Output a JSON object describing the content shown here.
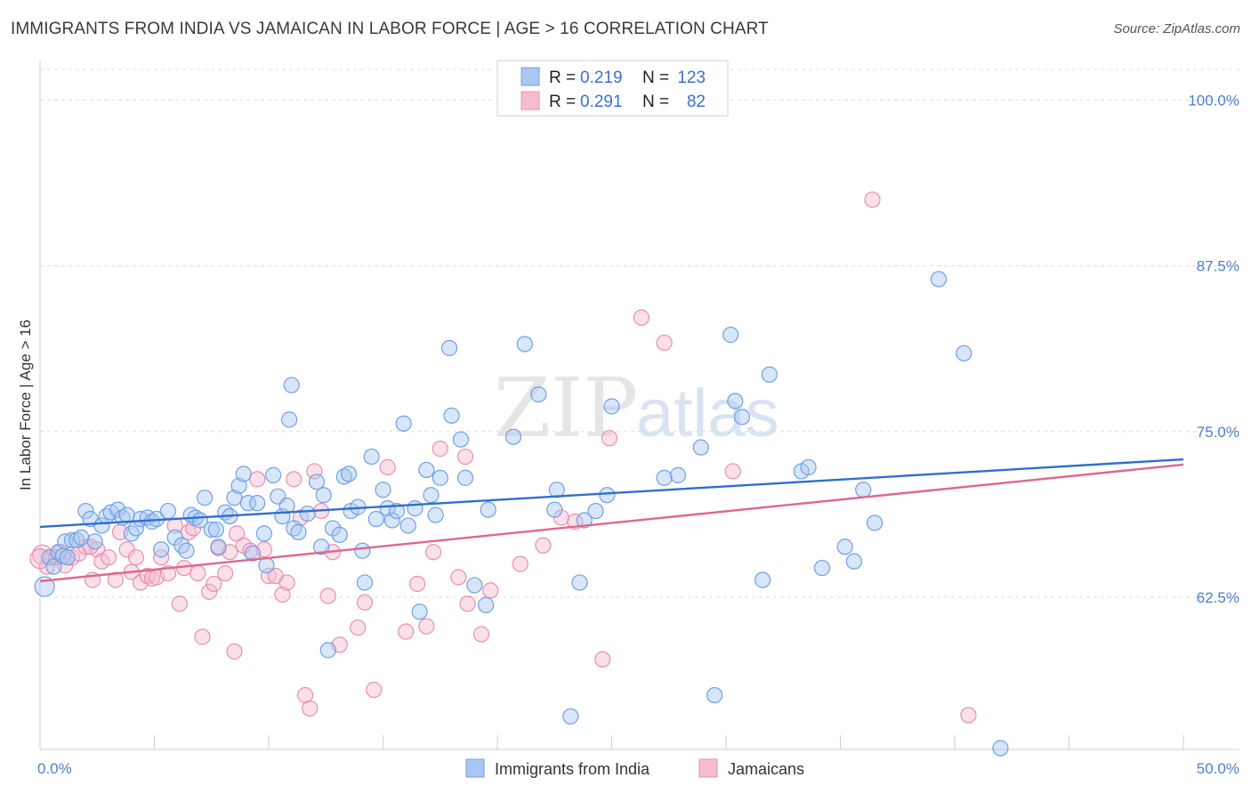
{
  "header": {
    "title": "IMMIGRANTS FROM INDIA VS JAMAICAN IN LABOR FORCE | AGE > 16 CORRELATION CHART",
    "source": "Source: ZipAtlas.com"
  },
  "watermark": {
    "zip": "ZIP",
    "atlas": "atlas"
  },
  "chart_data": {
    "type": "scatter",
    "ylabel": "In Labor Force | Age > 16",
    "xlim": [
      0,
      50
    ],
    "ylim": [
      51,
      103
    ],
    "x_tick_labels": [
      "0.0%",
      "50.0%"
    ],
    "y_ticks": [
      62.5,
      75.0,
      87.5,
      100.0
    ],
    "y_tick_labels": [
      "62.5%",
      "75.0%",
      "87.5%",
      "100.0%"
    ],
    "grid": "horizontal dashed",
    "legend": {
      "placement": "top-center",
      "rows": [
        {
          "r_label": "R = ",
          "r_value": "0.219",
          "n_label": "N = ",
          "n_value": "123"
        },
        {
          "r_label": "R = ",
          "r_value": "0.291",
          "n_label": "N = ",
          "n_value": "82"
        }
      ]
    },
    "series": [
      {
        "name": "Immigrants from India",
        "color": "#6fa0e6",
        "fill": "#a9c7f2",
        "trend": {
          "x": [
            0,
            50
          ],
          "y": [
            67.8,
            72.9
          ],
          "color": "#2f6fce"
        },
        "points": [
          [
            0.2,
            63.3
          ],
          [
            0.4,
            65.5
          ],
          [
            0.6,
            64.8
          ],
          [
            0.8,
            65.9
          ],
          [
            1.0,
            65.6
          ],
          [
            1.1,
            66.7
          ],
          [
            1.2,
            65.5
          ],
          [
            1.4,
            66.8
          ],
          [
            1.6,
            66.8
          ],
          [
            1.8,
            67.0
          ],
          [
            2.0,
            69.0
          ],
          [
            2.2,
            68.4
          ],
          [
            2.4,
            66.7
          ],
          [
            2.7,
            67.9
          ],
          [
            2.9,
            68.6
          ],
          [
            3.1,
            68.9
          ],
          [
            3.4,
            69.1
          ],
          [
            3.6,
            68.5
          ],
          [
            3.8,
            68.7
          ],
          [
            4.0,
            67.3
          ],
          [
            4.2,
            67.7
          ],
          [
            4.4,
            68.4
          ],
          [
            4.7,
            68.5
          ],
          [
            4.9,
            68.2
          ],
          [
            5.1,
            68.4
          ],
          [
            5.3,
            66.1
          ],
          [
            5.6,
            69.0
          ],
          [
            5.9,
            67.0
          ],
          [
            6.2,
            66.4
          ],
          [
            6.4,
            66.0
          ],
          [
            6.6,
            68.7
          ],
          [
            6.8,
            68.5
          ],
          [
            7.0,
            68.3
          ],
          [
            7.2,
            70.0
          ],
          [
            7.5,
            67.6
          ],
          [
            7.7,
            67.6
          ],
          [
            7.8,
            66.3
          ],
          [
            8.1,
            68.9
          ],
          [
            8.3,
            68.6
          ],
          [
            8.5,
            70.0
          ],
          [
            8.7,
            70.9
          ],
          [
            8.9,
            71.8
          ],
          [
            9.1,
            69.6
          ],
          [
            9.3,
            65.8
          ],
          [
            9.5,
            69.6
          ],
          [
            9.8,
            67.3
          ],
          [
            9.9,
            64.9
          ],
          [
            10.2,
            71.7
          ],
          [
            10.4,
            70.1
          ],
          [
            10.6,
            68.6
          ],
          [
            10.8,
            69.4
          ],
          [
            11.1,
            67.7
          ],
          [
            11.3,
            67.4
          ],
          [
            11.0,
            78.5
          ],
          [
            10.9,
            75.9
          ],
          [
            11.7,
            68.8
          ],
          [
            12.1,
            71.2
          ],
          [
            12.3,
            66.3
          ],
          [
            12.4,
            70.2
          ],
          [
            12.8,
            67.7
          ],
          [
            13.1,
            67.2
          ],
          [
            13.3,
            71.6
          ],
          [
            13.5,
            71.8
          ],
          [
            13.6,
            69.0
          ],
          [
            13.9,
            69.3
          ],
          [
            14.1,
            66.0
          ],
          [
            14.2,
            63.6
          ],
          [
            14.5,
            73.1
          ],
          [
            14.7,
            68.4
          ],
          [
            15.0,
            70.6
          ],
          [
            15.2,
            69.2
          ],
          [
            15.4,
            68.3
          ],
          [
            15.6,
            69.0
          ],
          [
            15.9,
            75.6
          ],
          [
            16.1,
            67.9
          ],
          [
            16.4,
            69.2
          ],
          [
            16.6,
            61.4
          ],
          [
            16.9,
            72.1
          ],
          [
            17.1,
            70.2
          ],
          [
            17.3,
            68.7
          ],
          [
            17.5,
            71.5
          ],
          [
            17.9,
            81.3
          ],
          [
            18.0,
            76.2
          ],
          [
            18.4,
            74.4
          ],
          [
            18.6,
            71.5
          ],
          [
            19.0,
            63.4
          ],
          [
            19.5,
            61.9
          ],
          [
            19.6,
            69.1
          ],
          [
            20.7,
            74.6
          ],
          [
            21.2,
            81.6
          ],
          [
            21.8,
            77.8
          ],
          [
            22.5,
            69.1
          ],
          [
            22.6,
            70.6
          ],
          [
            23.6,
            63.6
          ],
          [
            23.8,
            68.3
          ],
          [
            24.3,
            69.0
          ],
          [
            24.8,
            70.2
          ],
          [
            25.0,
            76.9
          ],
          [
            27.3,
            71.5
          ],
          [
            27.9,
            71.7
          ],
          [
            28.9,
            73.8
          ],
          [
            29.5,
            55.1
          ],
          [
            30.2,
            82.3
          ],
          [
            30.4,
            77.3
          ],
          [
            30.7,
            76.1
          ],
          [
            31.6,
            63.8
          ],
          [
            31.9,
            79.3
          ],
          [
            33.3,
            72.0
          ],
          [
            33.6,
            72.3
          ],
          [
            34.2,
            64.7
          ],
          [
            35.2,
            66.3
          ],
          [
            35.6,
            65.2
          ],
          [
            36.0,
            70.6
          ],
          [
            36.5,
            68.1
          ],
          [
            39.3,
            86.5
          ],
          [
            40.4,
            80.9
          ],
          [
            42.0,
            51.1
          ],
          [
            23.2,
            53.5
          ],
          [
            12.6,
            58.5
          ]
        ]
      },
      {
        "name": "Jamaicans",
        "color": "#e98eae",
        "fill": "#f5bccf",
        "trend": {
          "x": [
            0,
            50
          ],
          "y": [
            63.7,
            72.5
          ],
          "color": "#e0668f"
        },
        "points": [
          [
            0.1,
            65.7
          ],
          [
            0.3,
            64.8
          ],
          [
            0.5,
            65.5
          ],
          [
            0.7,
            65.5
          ],
          [
            0.9,
            65.9
          ],
          [
            1.1,
            64.9
          ],
          [
            1.4,
            65.5
          ],
          [
            1.7,
            65.8
          ],
          [
            2.0,
            66.3
          ],
          [
            2.3,
            63.8
          ],
          [
            2.5,
            66.1
          ],
          [
            2.7,
            65.2
          ],
          [
            3.0,
            65.5
          ],
          [
            3.3,
            63.8
          ],
          [
            3.5,
            67.4
          ],
          [
            3.8,
            66.1
          ],
          [
            4.0,
            64.4
          ],
          [
            4.2,
            65.5
          ],
          [
            4.4,
            63.6
          ],
          [
            4.7,
            64.1
          ],
          [
            4.9,
            63.9
          ],
          [
            5.1,
            64.0
          ],
          [
            5.3,
            65.5
          ],
          [
            5.6,
            64.3
          ],
          [
            5.9,
            67.9
          ],
          [
            6.1,
            62.0
          ],
          [
            6.3,
            64.7
          ],
          [
            6.5,
            67.4
          ],
          [
            6.7,
            67.7
          ],
          [
            6.9,
            64.3
          ],
          [
            7.1,
            59.5
          ],
          [
            7.4,
            62.9
          ],
          [
            7.6,
            63.5
          ],
          [
            7.8,
            66.2
          ],
          [
            8.1,
            64.3
          ],
          [
            8.3,
            65.9
          ],
          [
            8.5,
            58.4
          ],
          [
            8.6,
            67.3
          ],
          [
            8.9,
            66.4
          ],
          [
            9.2,
            66.0
          ],
          [
            9.5,
            71.4
          ],
          [
            9.8,
            66.1
          ],
          [
            10.0,
            64.1
          ],
          [
            10.3,
            64.1
          ],
          [
            10.6,
            62.7
          ],
          [
            10.8,
            63.6
          ],
          [
            11.1,
            71.4
          ],
          [
            11.4,
            68.5
          ],
          [
            11.6,
            55.1
          ],
          [
            11.8,
            54.1
          ],
          [
            12.0,
            72.0
          ],
          [
            12.3,
            69.0
          ],
          [
            12.6,
            62.6
          ],
          [
            12.8,
            65.9
          ],
          [
            13.1,
            58.9
          ],
          [
            13.9,
            60.2
          ],
          [
            14.2,
            62.1
          ],
          [
            14.6,
            55.5
          ],
          [
            15.2,
            72.3
          ],
          [
            16.0,
            59.9
          ],
          [
            16.5,
            63.5
          ],
          [
            16.9,
            60.3
          ],
          [
            17.2,
            65.9
          ],
          [
            17.5,
            73.7
          ],
          [
            18.3,
            64.0
          ],
          [
            18.6,
            73.1
          ],
          [
            18.7,
            62.0
          ],
          [
            19.3,
            59.7
          ],
          [
            19.7,
            63.0
          ],
          [
            21.0,
            65.0
          ],
          [
            22.0,
            66.4
          ],
          [
            22.8,
            68.5
          ],
          [
            23.4,
            68.2
          ],
          [
            24.6,
            57.8
          ],
          [
            24.9,
            74.5
          ],
          [
            26.3,
            83.6
          ],
          [
            27.3,
            81.7
          ],
          [
            30.3,
            72.0
          ],
          [
            36.4,
            92.5
          ],
          [
            40.6,
            53.6
          ],
          [
            0.0,
            65.4
          ],
          [
            2.2,
            66.3
          ]
        ]
      }
    ]
  }
}
